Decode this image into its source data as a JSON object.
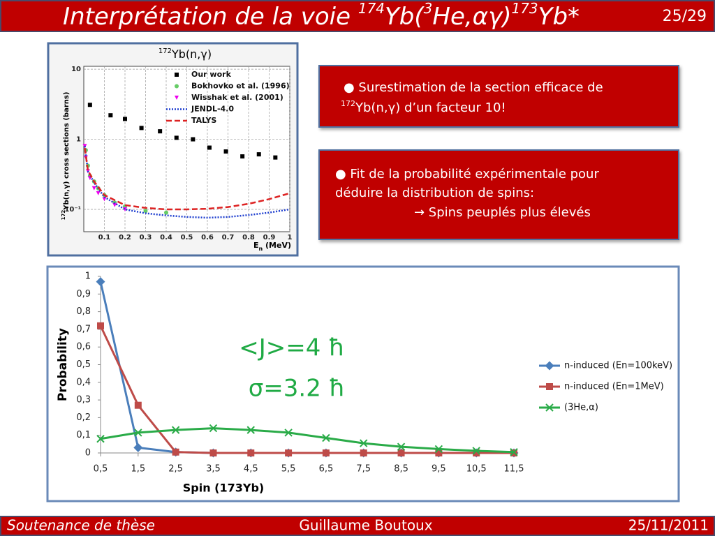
{
  "header": {
    "title_parts": [
      "Interprétation de la voie ",
      "174",
      "Yb(",
      "3",
      "He,αγ)",
      "173",
      "Yb*"
    ],
    "page": "25/29"
  },
  "box1": {
    "line1": "●  Surestimation de la section efficace de",
    "line2_sup": "172",
    "line2": "Yb(n,γ) d’un facteur 10!"
  },
  "box2": {
    "lines": [
      "● Fit de la probabilité expérimentale pour",
      "déduire la distribution de spins:",
      "→ Spins peuplés plus élevés"
    ]
  },
  "footer": {
    "left": "Soutenance de thèse",
    "center": "Guillaume Boutoux",
    "right": "25/11/2011"
  },
  "chart_data": [
    {
      "type": "line",
      "title_parts": [
        "172",
        "Yb(n,γ)"
      ],
      "y_label_parts": [
        "172",
        "Yb(n,γ) cross sections (barns)"
      ],
      "x_label_parts": [
        "E",
        "n",
        " (MeV)"
      ],
      "xlim": [
        0,
        1
      ],
      "xticks": [
        0.1,
        0.2,
        0.3,
        0.4,
        0.5,
        0.6,
        0.7,
        0.8,
        0.9,
        1
      ],
      "ylim": [
        0.048,
        11
      ],
      "ylog": true,
      "yticks": [
        10,
        1,
        {
          "value": 0.1,
          "label": "10⁻¹"
        }
      ],
      "grid": true,
      "legend": "upper center",
      "series": [
        {
          "name": "Our work",
          "color": "#000000",
          "marker": "square",
          "line": false,
          "x": [
            0.03,
            0.13,
            0.2,
            0.28,
            0.37,
            0.45,
            0.53,
            0.61,
            0.69,
            0.77,
            0.85,
            0.93
          ],
          "values": [
            3.1,
            2.2,
            1.95,
            1.45,
            1.3,
            1.05,
            1.0,
            0.76,
            0.67,
            0.57,
            0.61,
            0.55
          ]
        },
        {
          "name": "Bokhovko et al. (1996)",
          "color": "#66cc66",
          "marker": "circle",
          "line": false,
          "x": [
            0.01,
            0.02,
            0.03,
            0.05,
            0.07,
            0.1,
            0.15,
            0.2,
            0.3,
            0.4
          ],
          "values": [
            0.7,
            0.42,
            0.3,
            0.25,
            0.2,
            0.16,
            0.125,
            0.11,
            0.095,
            0.09
          ]
        },
        {
          "name": "Wisshak et al. (2001)",
          "color": "#ee00ee",
          "marker": "triangle",
          "line": false,
          "x": [
            0.005,
            0.01,
            0.02,
            0.03,
            0.05,
            0.07,
            0.1,
            0.15,
            0.2
          ],
          "values": [
            0.8,
            0.55,
            0.35,
            0.28,
            0.2,
            0.17,
            0.14,
            0.115,
            0.1
          ]
        },
        {
          "name": "JENDL-4.0",
          "color": "#1f3fcf",
          "marker": "none",
          "line": true,
          "dash": "2,2",
          "x": [
            0.005,
            0.02,
            0.05,
            0.1,
            0.2,
            0.3,
            0.4,
            0.5,
            0.6,
            0.7,
            0.8,
            0.9,
            1
          ],
          "values": [
            0.8,
            0.35,
            0.24,
            0.15,
            0.1,
            0.088,
            0.082,
            0.078,
            0.076,
            0.078,
            0.083,
            0.09,
            0.1
          ]
        },
        {
          "name": "TALYS",
          "color": "#dd2222",
          "marker": "none",
          "line": true,
          "dash": "8,4",
          "x": [
            0.005,
            0.02,
            0.05,
            0.1,
            0.2,
            0.3,
            0.4,
            0.5,
            0.6,
            0.7,
            0.8,
            0.9,
            1
          ],
          "values": [
            0.75,
            0.36,
            0.25,
            0.16,
            0.115,
            0.105,
            0.1,
            0.1,
            0.102,
            0.108,
            0.12,
            0.14,
            0.17
          ]
        }
      ]
    },
    {
      "type": "line",
      "x_label": "Spin (173Yb)",
      "y_label": "Probability",
      "categories": [
        "0,5",
        "1,5",
        "2,5",
        "3,5",
        "4,5",
        "5,5",
        "6,5",
        "7,5",
        "8,5",
        "9,5",
        "10,5",
        "11,5"
      ],
      "ylim": [
        0,
        1
      ],
      "yticks": [
        0,
        {
          "value": 0.1,
          "label": "0,1"
        },
        {
          "value": 0.2,
          "label": "0,2"
        },
        {
          "value": 0.3,
          "label": "0,3"
        },
        {
          "value": 0.4,
          "label": "0,4"
        },
        {
          "value": 0.5,
          "label": "0,5"
        },
        {
          "value": 0.6,
          "label": "0,6"
        },
        {
          "value": 0.7,
          "label": "0,7"
        },
        {
          "value": 0.8,
          "label": "0,8"
        },
        {
          "value": 0.9,
          "label": "0,9"
        },
        1
      ],
      "grid": false,
      "legend": "right",
      "annotations": [
        "<J>=4 ħ",
        "σ=3.2 ħ"
      ],
      "series": [
        {
          "name": "n-induced (En=100keV)",
          "color": "#4a7ebb",
          "marker": "diamond",
          "line": true,
          "values": [
            0.97,
            0.03,
            0.005,
            0,
            0,
            0,
            0,
            0,
            0,
            0,
            0,
            0
          ]
        },
        {
          "name": "n-induced (En=1MeV)",
          "color": "#be4b48",
          "marker": "square",
          "line": true,
          "values": [
            0.72,
            0.27,
            0.005,
            0,
            0,
            0,
            0,
            0,
            0,
            0,
            0,
            0
          ]
        },
        {
          "name": "(3He,α)",
          "color": "#2aab48",
          "marker": "x",
          "line": true,
          "values": [
            0.08,
            0.115,
            0.13,
            0.14,
            0.13,
            0.115,
            0.085,
            0.055,
            0.035,
            0.022,
            0.012,
            0.005
          ]
        }
      ]
    }
  ]
}
